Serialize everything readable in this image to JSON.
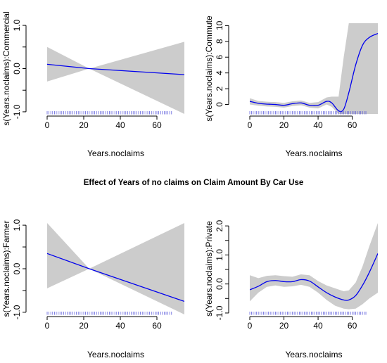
{
  "figure": {
    "title": "Effect of Years of no claims on Claim Amount By Car Use",
    "band_color": "#cccccc",
    "line_color": "#0000ee",
    "rug_color": "#4d4dd8"
  },
  "chart_data": [
    {
      "type": "line",
      "xlabel": "Years.noclaims",
      "ylabel": "s(Years.noclaims):Commercial",
      "xlim": [
        0,
        75
      ],
      "ylim": [
        -1.05,
        1.05
      ],
      "xticks": [
        0,
        20,
        40,
        60
      ],
      "yticks": [
        -1.0,
        -0.5,
        0.0,
        0.5,
        1.0
      ],
      "ytick_labels": [
        "-1.0",
        "",
        "0.0",
        "",
        "1.0"
      ],
      "x": [
        0,
        23,
        75
      ],
      "fit": [
        0.1,
        0.0,
        -0.14
      ],
      "lower": [
        -0.3,
        0.0,
        -1.05
      ],
      "upper": [
        0.5,
        0.0,
        0.62
      ],
      "rug": {
        "from": 0,
        "to": 68,
        "step": 1
      }
    },
    {
      "type": "line",
      "xlabel": "Years.noclaims",
      "ylabel": "s(Years.noclaims):Commute",
      "xlim": [
        0,
        75
      ],
      "ylim": [
        -1.2,
        10.3
      ],
      "xticks": [
        0,
        20,
        40,
        60
      ],
      "yticks": [
        0,
        2,
        4,
        6,
        8,
        10
      ],
      "ytick_labels": [
        "0",
        "2",
        "4",
        "6",
        "8",
        "10"
      ],
      "x": [
        0,
        5,
        10,
        15,
        20,
        25,
        30,
        35,
        40,
        45,
        48,
        52,
        55,
        58,
        62,
        66,
        70,
        75
      ],
      "fit": [
        0.4,
        0.15,
        0.05,
        0.0,
        -0.1,
        0.1,
        0.2,
        -0.1,
        -0.1,
        0.4,
        0.2,
        -0.8,
        -0.6,
        1.5,
        5.0,
        7.5,
        8.5,
        9.0
      ],
      "lower": [
        0.0,
        -0.15,
        -0.25,
        -0.3,
        -0.4,
        -0.2,
        -0.1,
        -0.4,
        -0.5,
        0.0,
        -0.3,
        -1.2,
        -1.2,
        -1.2,
        -1.2,
        -1.2,
        -1.2,
        -1.2
      ],
      "upper": [
        0.8,
        0.45,
        0.35,
        0.3,
        0.2,
        0.4,
        0.5,
        0.2,
        0.3,
        0.9,
        1.0,
        1.0,
        6.0,
        10.3,
        10.3,
        10.3,
        10.3,
        10.3
      ],
      "rug": {
        "from": 0,
        "to": 68,
        "step": 1
      }
    },
    {
      "type": "line",
      "xlabel": "Years.noclaims",
      "ylabel": "s(Years.noclaims):Farmer",
      "xlim": [
        0,
        75
      ],
      "ylim": [
        -1.05,
        1.05
      ],
      "xticks": [
        0,
        20,
        40,
        60
      ],
      "yticks": [
        -1.0,
        -0.5,
        0.0,
        0.5,
        1.0
      ],
      "ytick_labels": [
        "-1.0",
        "",
        "0.0",
        "",
        "1.0"
      ],
      "x": [
        0,
        23,
        75
      ],
      "fit": [
        0.35,
        0.0,
        -0.75
      ],
      "lower": [
        -0.45,
        0.0,
        -1.05
      ],
      "upper": [
        1.05,
        0.0,
        1.05
      ],
      "rug": {
        "from": 0,
        "to": 68,
        "step": 1
      }
    },
    {
      "type": "line",
      "xlabel": "Years.noclaims",
      "ylabel": "s(Years.noclaims):Private",
      "xlim": [
        0,
        75
      ],
      "ylim": [
        -1.05,
        2.1
      ],
      "xticks": [
        0,
        20,
        40,
        60
      ],
      "yticks": [
        -1.0,
        -0.5,
        0.0,
        0.5,
        1.0,
        1.5,
        2.0
      ],
      "ytick_labels": [
        "-1.0",
        "",
        "0.0",
        "",
        "1.0",
        "",
        "2.0"
      ],
      "x": [
        0,
        5,
        10,
        15,
        20,
        25,
        30,
        35,
        40,
        45,
        50,
        55,
        58,
        62,
        66,
        70,
        75
      ],
      "fit": [
        -0.2,
        -0.08,
        0.08,
        0.12,
        0.08,
        0.08,
        0.15,
        0.1,
        -0.1,
        -0.3,
        -0.45,
        -0.55,
        -0.55,
        -0.4,
        -0.05,
        0.4,
        1.05
      ],
      "lower": [
        -0.6,
        -0.3,
        -0.1,
        -0.05,
        -0.1,
        -0.08,
        -0.03,
        -0.1,
        -0.3,
        -0.55,
        -0.75,
        -0.85,
        -0.87,
        -0.85,
        -0.7,
        -0.5,
        -0.3
      ],
      "upper": [
        0.3,
        0.2,
        0.28,
        0.3,
        0.27,
        0.25,
        0.33,
        0.3,
        0.1,
        -0.05,
        -0.15,
        -0.25,
        -0.22,
        0.05,
        0.6,
        1.3,
        2.1
      ],
      "rug": {
        "from": 0,
        "to": 68,
        "step": 1
      }
    }
  ]
}
